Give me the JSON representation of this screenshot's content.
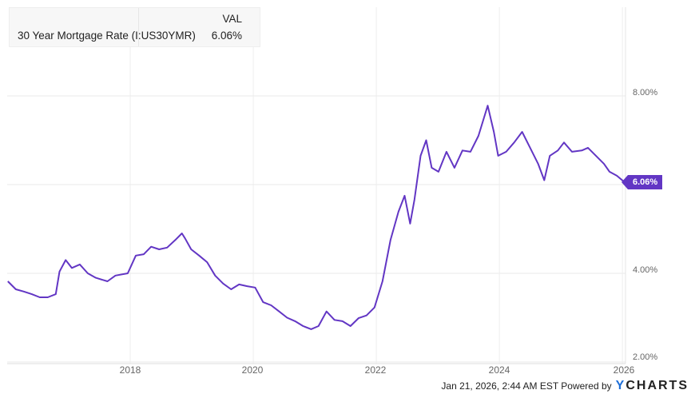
{
  "legend": {
    "header": "VAL",
    "series_name": "30 Year Mortgage Rate (I:US30YMR)",
    "value": "6.06%"
  },
  "footer": {
    "timestamp": "Jan 21, 2026, 2:44 AM EST",
    "powered_by": "Powered by",
    "brand_y": "Y",
    "brand_rest": "CHARTS"
  },
  "chart_data": {
    "type": "line",
    "title": "",
    "xlabel": "",
    "ylabel": "",
    "xlim": [
      2016.0,
      2026.05
    ],
    "ylim": [
      2.0,
      10.0
    ],
    "x_ticks": [
      "2018",
      "2020",
      "2022",
      "2024",
      "2026"
    ],
    "y_ticks": [
      "8.00%",
      "4.00%",
      "2.00%"
    ],
    "y_gridlines": [
      2,
      4,
      6,
      8
    ],
    "grid": true,
    "last_value_label": "6.06%",
    "color": "#6236c4",
    "series": [
      {
        "name": "30 Year Mortgage Rate (I:US30YMR)",
        "points": [
          [
            2016.01,
            3.82
          ],
          [
            2016.14,
            3.64
          ],
          [
            2016.27,
            3.59
          ],
          [
            2016.4,
            3.53
          ],
          [
            2016.53,
            3.46
          ],
          [
            2016.66,
            3.46
          ],
          [
            2016.79,
            3.53
          ],
          [
            2016.85,
            4.04
          ],
          [
            2016.95,
            4.3
          ],
          [
            2017.05,
            4.12
          ],
          [
            2017.18,
            4.2
          ],
          [
            2017.31,
            4.0
          ],
          [
            2017.44,
            3.9
          ],
          [
            2017.63,
            3.82
          ],
          [
            2017.76,
            3.95
          ],
          [
            2017.96,
            4.0
          ],
          [
            2018.09,
            4.4
          ],
          [
            2018.22,
            4.43
          ],
          [
            2018.34,
            4.6
          ],
          [
            2018.47,
            4.54
          ],
          [
            2018.6,
            4.58
          ],
          [
            2018.73,
            4.75
          ],
          [
            2018.84,
            4.9
          ],
          [
            2018.89,
            4.79
          ],
          [
            2018.99,
            4.54
          ],
          [
            2019.12,
            4.4
          ],
          [
            2019.25,
            4.25
          ],
          [
            2019.38,
            3.95
          ],
          [
            2019.51,
            3.77
          ],
          [
            2019.64,
            3.64
          ],
          [
            2019.77,
            3.75
          ],
          [
            2019.9,
            3.71
          ],
          [
            2020.03,
            3.68
          ],
          [
            2020.16,
            3.35
          ],
          [
            2020.29,
            3.28
          ],
          [
            2020.42,
            3.14
          ],
          [
            2020.55,
            3.0
          ],
          [
            2020.68,
            2.92
          ],
          [
            2020.81,
            2.81
          ],
          [
            2020.94,
            2.74
          ],
          [
            2021.06,
            2.81
          ],
          [
            2021.19,
            3.14
          ],
          [
            2021.32,
            2.95
          ],
          [
            2021.45,
            2.92
          ],
          [
            2021.58,
            2.81
          ],
          [
            2021.71,
            2.99
          ],
          [
            2021.84,
            3.05
          ],
          [
            2021.97,
            3.23
          ],
          [
            2022.1,
            3.82
          ],
          [
            2022.23,
            4.75
          ],
          [
            2022.36,
            5.39
          ],
          [
            2022.46,
            5.75
          ],
          [
            2022.55,
            5.12
          ],
          [
            2022.62,
            5.66
          ],
          [
            2022.72,
            6.65
          ],
          [
            2022.81,
            7.0
          ],
          [
            2022.9,
            6.38
          ],
          [
            2023.01,
            6.29
          ],
          [
            2023.14,
            6.74
          ],
          [
            2023.27,
            6.38
          ],
          [
            2023.4,
            6.77
          ],
          [
            2023.53,
            6.74
          ],
          [
            2023.66,
            7.1
          ],
          [
            2023.81,
            7.78
          ],
          [
            2023.91,
            7.19
          ],
          [
            2023.98,
            6.65
          ],
          [
            2024.11,
            6.74
          ],
          [
            2024.24,
            6.95
          ],
          [
            2024.37,
            7.19
          ],
          [
            2024.5,
            6.83
          ],
          [
            2024.63,
            6.47
          ],
          [
            2024.73,
            6.1
          ],
          [
            2024.82,
            6.65
          ],
          [
            2024.95,
            6.77
          ],
          [
            2025.05,
            6.95
          ],
          [
            2025.18,
            6.74
          ],
          [
            2025.34,
            6.77
          ],
          [
            2025.44,
            6.83
          ],
          [
            2025.57,
            6.65
          ],
          [
            2025.7,
            6.47
          ],
          [
            2025.79,
            6.29
          ],
          [
            2025.91,
            6.2
          ],
          [
            2026.03,
            6.06
          ]
        ]
      }
    ]
  }
}
